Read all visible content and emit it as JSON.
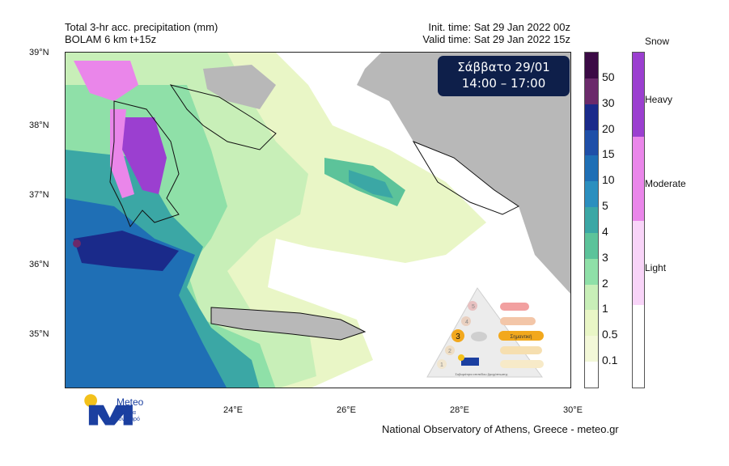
{
  "header": {
    "title_line1": "Total 3-hr acc. precipitation (mm)",
    "title_line2": "BOLAM 6 km t+15z",
    "init_time": "Init. time: Sat 29 Jan 2022 00z",
    "valid_time": "Valid time: Sat 29 Jan 2022 15z"
  },
  "badge": {
    "day": "Σάββατο 29/01",
    "hours": "14:00 – 17:00",
    "color": "#0e1f4a"
  },
  "axes": {
    "lat_labels": [
      "39°N",
      "38°N",
      "37°N",
      "36°N",
      "35°N"
    ],
    "lon_labels": [
      "24°E",
      "26°E",
      "28°E",
      "30°E"
    ]
  },
  "colorbar": {
    "labels": [
      "50",
      "30",
      "20",
      "15",
      "10",
      "5",
      "4",
      "3",
      "2",
      "1",
      "0.5",
      "0.1"
    ],
    "colors": [
      "#3b0a45",
      "#6b2a6b",
      "#1a2a8a",
      "#1f4fa8",
      "#1f6fb5",
      "#2b8fbf",
      "#3ba7a5",
      "#5cc39a",
      "#8fe0a8",
      "#c8efb8",
      "#e9f6c6",
      "#f3f8d8",
      "#ffffff"
    ]
  },
  "snowbar": {
    "title": "Snow",
    "labels": [
      "Heavy",
      "Moderate",
      "Light"
    ],
    "colors": [
      "#9b3fd0",
      "#ea86ea",
      "#f8d4f8",
      "#ffffff"
    ]
  },
  "infographic": {
    "level_number": "3",
    "level_label": "Σημαντική",
    "levels": [
      "5",
      "4",
      "3",
      "2",
      "1"
    ],
    "caption": "Σοβαρότητα επιπέδου βροχόπτωσης"
  },
  "footer": {
    "credit": "National Observatory of Athens, Greece - meteo.gr"
  },
  "logo": {
    "name": "Meteo",
    "tagline_line1": "Όλα για",
    "tagline_line2": "τον καιρό"
  }
}
